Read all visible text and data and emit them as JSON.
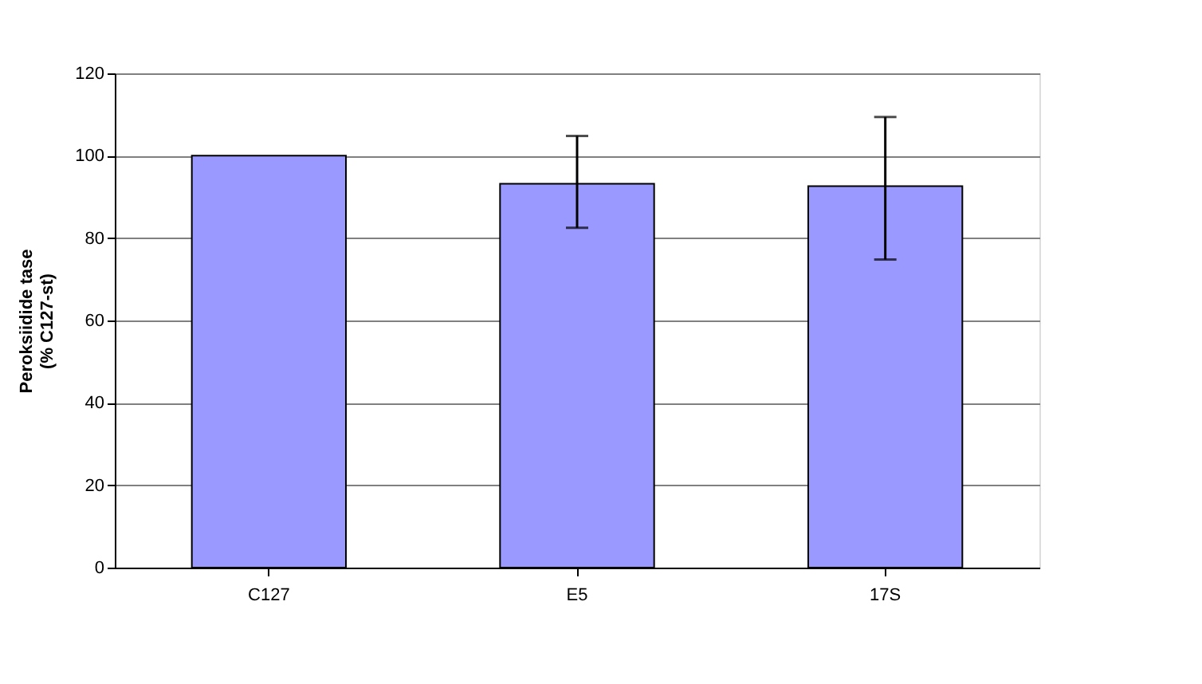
{
  "chart_data": {
    "type": "bar",
    "ylabel": "Peroksiidide tase\n(% C127-st)",
    "categories": [
      "C127",
      "E5",
      "17S"
    ],
    "values": [
      100,
      93.2,
      92.6
    ],
    "errors": [
      null,
      [
        82.5,
        104.8
      ],
      [
        74.8,
        109.4
      ]
    ],
    "color": "#9999ff",
    "ylim": [
      0,
      120
    ],
    "yticks": [
      0,
      20,
      40,
      60,
      80,
      100,
      120
    ],
    "grid": "y"
  }
}
